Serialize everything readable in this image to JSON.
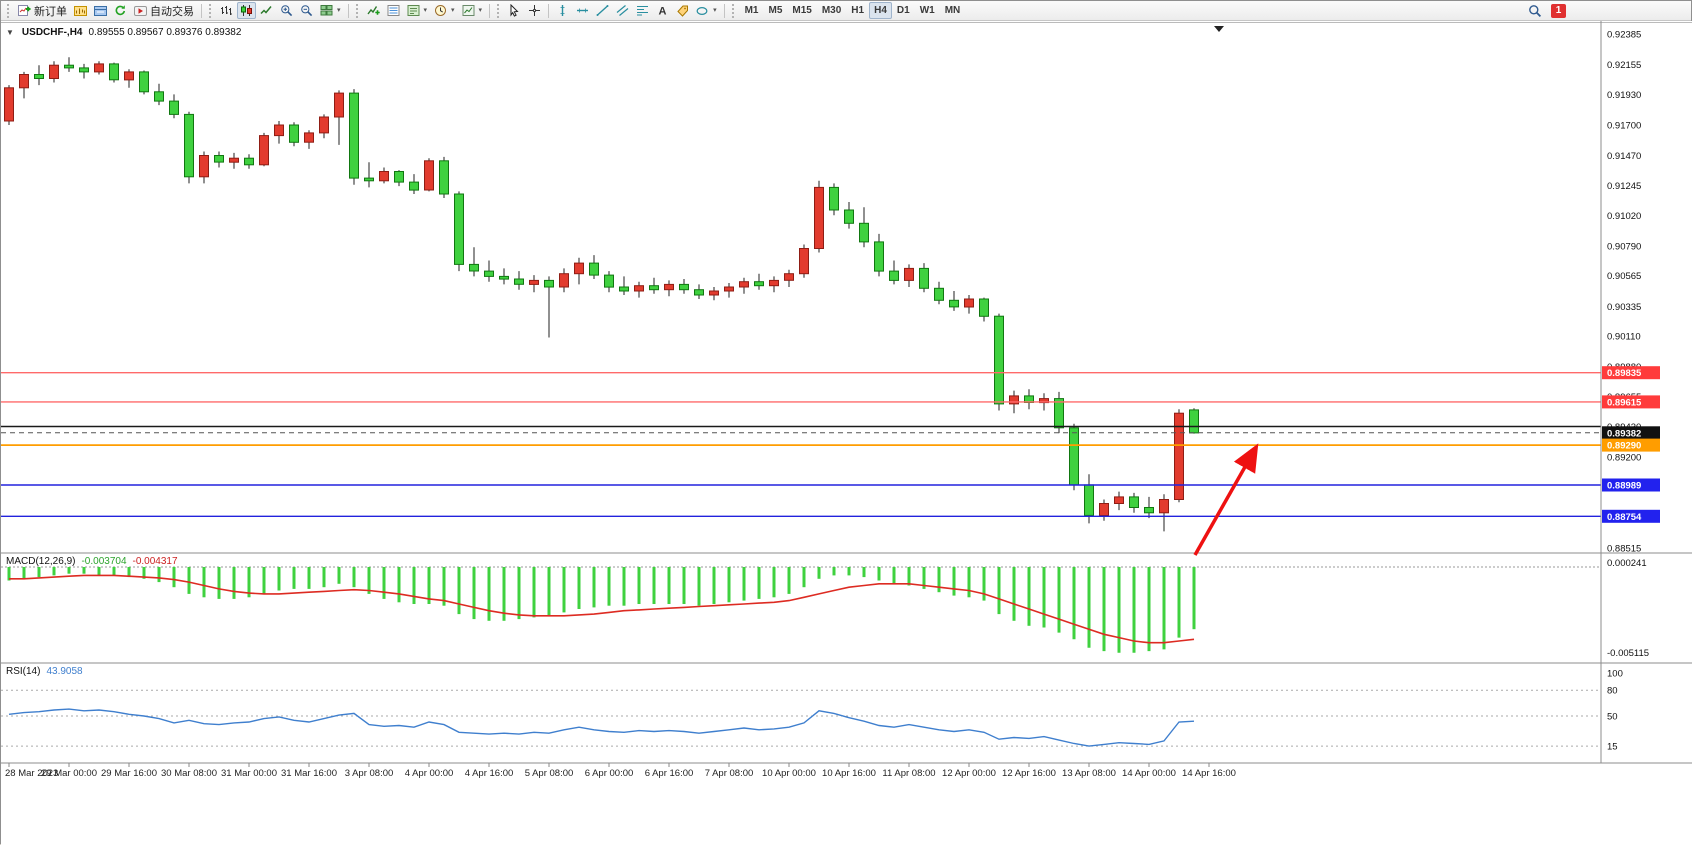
{
  "toolbar": {
    "new_order_label": "新订单",
    "autotrading_label": "自动交易",
    "timeframes": [
      "M1",
      "M5",
      "M15",
      "M30",
      "H1",
      "H4",
      "D1",
      "W1",
      "MN"
    ],
    "active_timeframe": "H4",
    "notification_count": "1"
  },
  "chart": {
    "title": "USDCHF-,H4",
    "ohlc": "0.89555 0.89567 0.89376 0.89382"
  },
  "chart_data": {
    "type": "candlestick",
    "symbol": "USDCHF-",
    "period": "H4",
    "colors": {
      "up": "#e23b2e",
      "up_border": "#8f1d14",
      "down": "#3fd13f",
      "down_border": "#117711",
      "wick": "#222222",
      "macd_hist": "#3fd13f",
      "macd_signal": "#dd2b22",
      "rsi": "#3f7fce"
    },
    "price_axis": {
      "max": 0.92385,
      "min": 0.88515,
      "ticks": [
        "0.92385",
        "0.92155",
        "0.91930",
        "0.91700",
        "0.91470",
        "0.91245",
        "0.91020",
        "0.90790",
        "0.90565",
        "0.90335",
        "0.90110",
        "0.89880",
        "0.89655",
        "0.89430",
        "0.89200",
        "0.88970",
        "0.88745",
        "0.88515"
      ]
    },
    "levels": [
      {
        "price": 0.89835,
        "color": "#ff6a6a",
        "width": 1.4,
        "badge": "0.89835",
        "badge_bg": "#ff3b3b"
      },
      {
        "price": 0.89615,
        "color": "#ff6a6a",
        "width": 1.4,
        "badge": "0.89615",
        "badge_bg": "#ff3b3b"
      },
      {
        "price": 0.8943,
        "color": "#1a1a1a",
        "width": 1.6,
        "badge": null
      },
      {
        "price": 0.89382,
        "color": "#555555",
        "width": 1,
        "dashed": true,
        "badge": "0.89382",
        "badge_bg": "#111111"
      },
      {
        "price": 0.8929,
        "color": "#ff9d00",
        "width": 1.8,
        "badge": "0.89290",
        "badge_bg": "#ff9d00"
      },
      {
        "price": 0.88989,
        "color": "#2222dd",
        "width": 1.4,
        "badge": "0.88989",
        "badge_bg": "#2222ee"
      },
      {
        "price": 0.88754,
        "color": "#2222dd",
        "width": 1.4,
        "badge": "0.88754",
        "badge_bg": "#2222ee"
      }
    ],
    "candles": [
      [
        0.9173,
        0.92,
        0.917,
        0.9198
      ],
      [
        0.9198,
        0.921,
        0.919,
        0.9208
      ],
      [
        0.9208,
        0.9215,
        0.92,
        0.9205
      ],
      [
        0.9205,
        0.9218,
        0.9202,
        0.9215
      ],
      [
        0.9215,
        0.9221,
        0.921,
        0.9213
      ],
      [
        0.9213,
        0.9216,
        0.9205,
        0.921
      ],
      [
        0.921,
        0.9218,
        0.9208,
        0.9216
      ],
      [
        0.9216,
        0.9217,
        0.9202,
        0.9204
      ],
      [
        0.9204,
        0.9212,
        0.9198,
        0.921
      ],
      [
        0.921,
        0.9211,
        0.9193,
        0.9195
      ],
      [
        0.9195,
        0.9201,
        0.9185,
        0.9188
      ],
      [
        0.9188,
        0.9193,
        0.9175,
        0.9178
      ],
      [
        0.9178,
        0.918,
        0.9126,
        0.9131
      ],
      [
        0.9131,
        0.915,
        0.9126,
        0.9147
      ],
      [
        0.9147,
        0.915,
        0.9138,
        0.9142
      ],
      [
        0.9142,
        0.9149,
        0.9137,
        0.9145
      ],
      [
        0.9145,
        0.9148,
        0.9137,
        0.914
      ],
      [
        0.914,
        0.9164,
        0.9139,
        0.9162
      ],
      [
        0.9162,
        0.9173,
        0.9156,
        0.917
      ],
      [
        0.917,
        0.9172,
        0.9154,
        0.9157
      ],
      [
        0.9157,
        0.9166,
        0.9152,
        0.9164
      ],
      [
        0.9164,
        0.9178,
        0.916,
        0.9176
      ],
      [
        0.9176,
        0.9196,
        0.9155,
        0.9194
      ],
      [
        0.9194,
        0.9197,
        0.9125,
        0.913
      ],
      [
        0.913,
        0.9142,
        0.9123,
        0.9128
      ],
      [
        0.9128,
        0.9138,
        0.9126,
        0.9135
      ],
      [
        0.9135,
        0.9136,
        0.9124,
        0.9127
      ],
      [
        0.9127,
        0.9133,
        0.9118,
        0.9121
      ],
      [
        0.9121,
        0.9145,
        0.912,
        0.9143
      ],
      [
        0.9143,
        0.9146,
        0.9115,
        0.9118
      ],
      [
        0.9118,
        0.912,
        0.906,
        0.9065
      ],
      [
        0.9065,
        0.9078,
        0.9056,
        0.906
      ],
      [
        0.906,
        0.9068,
        0.9052,
        0.9056
      ],
      [
        0.9056,
        0.9062,
        0.905,
        0.9054
      ],
      [
        0.9054,
        0.906,
        0.9046,
        0.905
      ],
      [
        0.905,
        0.9057,
        0.9044,
        0.9053
      ],
      [
        0.9053,
        0.9056,
        0.901,
        0.9048
      ],
      [
        0.9048,
        0.9062,
        0.9044,
        0.9058
      ],
      [
        0.9058,
        0.907,
        0.905,
        0.9066
      ],
      [
        0.9066,
        0.9072,
        0.9054,
        0.9057
      ],
      [
        0.9057,
        0.906,
        0.9044,
        0.9048
      ],
      [
        0.9048,
        0.9056,
        0.9042,
        0.9045
      ],
      [
        0.9045,
        0.9052,
        0.904,
        0.9049
      ],
      [
        0.9049,
        0.9055,
        0.9043,
        0.9046
      ],
      [
        0.9046,
        0.9053,
        0.9041,
        0.905
      ],
      [
        0.905,
        0.9054,
        0.9043,
        0.9046
      ],
      [
        0.9046,
        0.905,
        0.9039,
        0.9042
      ],
      [
        0.9042,
        0.9048,
        0.9038,
        0.9045
      ],
      [
        0.9045,
        0.9051,
        0.904,
        0.9048
      ],
      [
        0.9048,
        0.9055,
        0.9043,
        0.9052
      ],
      [
        0.9052,
        0.9058,
        0.9046,
        0.9049
      ],
      [
        0.9049,
        0.9056,
        0.9044,
        0.9053
      ],
      [
        0.9053,
        0.9061,
        0.9048,
        0.9058
      ],
      [
        0.9058,
        0.908,
        0.9055,
        0.9077
      ],
      [
        0.9077,
        0.9128,
        0.9074,
        0.9123
      ],
      [
        0.9123,
        0.9126,
        0.9102,
        0.9106
      ],
      [
        0.9106,
        0.9112,
        0.9092,
        0.9096
      ],
      [
        0.9096,
        0.9108,
        0.9078,
        0.9082
      ],
      [
        0.9082,
        0.9088,
        0.9056,
        0.906
      ],
      [
        0.906,
        0.9068,
        0.905,
        0.9053
      ],
      [
        0.9053,
        0.9065,
        0.9048,
        0.9062
      ],
      [
        0.9062,
        0.9066,
        0.9044,
        0.9047
      ],
      [
        0.9047,
        0.9052,
        0.9035,
        0.9038
      ],
      [
        0.9038,
        0.9045,
        0.903,
        0.9033
      ],
      [
        0.9033,
        0.9042,
        0.9028,
        0.9039
      ],
      [
        0.9039,
        0.904,
        0.9022,
        0.9026
      ],
      [
        0.9026,
        0.9028,
        0.8955,
        0.896
      ],
      [
        0.896,
        0.897,
        0.8953,
        0.8966
      ],
      [
        0.8966,
        0.8971,
        0.8956,
        0.8961
      ],
      [
        0.8961,
        0.8968,
        0.8955,
        0.8964
      ],
      [
        0.8964,
        0.8969,
        0.8938,
        0.8942
      ],
      [
        0.8942,
        0.8945,
        0.8895,
        0.8899
      ],
      [
        0.8899,
        0.8907,
        0.887,
        0.8876
      ],
      [
        0.8876,
        0.8888,
        0.8872,
        0.8885
      ],
      [
        0.8885,
        0.8894,
        0.888,
        0.889
      ],
      [
        0.889,
        0.8893,
        0.8878,
        0.8882
      ],
      [
        0.8882,
        0.889,
        0.8874,
        0.8878
      ],
      [
        0.8878,
        0.8892,
        0.8864,
        0.8888
      ],
      [
        0.8888,
        0.8956,
        0.8886,
        0.8953
      ],
      [
        0.89555,
        0.89567,
        0.89376,
        0.89382
      ]
    ],
    "time_labels": [
      "28 Mar 2023",
      "29 Mar 00:00",
      "29 Mar 16:00",
      "30 Mar 08:00",
      "31 Mar 00:00",
      "31 Mar 16:00",
      "3 Apr 08:00",
      "4 Apr 00:00",
      "4 Apr 16:00",
      "5 Apr 08:00",
      "6 Apr 00:00",
      "6 Apr 16:00",
      "7 Apr 08:00",
      "10 Apr 00:00",
      "10 Apr 16:00",
      "11 Apr 08:00",
      "12 Apr 00:00",
      "12 Apr 16:00",
      "13 Apr 08:00",
      "14 Apr 00:00",
      "14 Apr 16:00"
    ],
    "macd": {
      "label": "MACD(12,26,9)",
      "value_main": "-0.003704",
      "value_signal": "-0.004317",
      "scale_top": "0.000241",
      "scale_bottom": "-0.005115",
      "histogram": [
        -0.0008,
        -0.0007,
        -0.0006,
        -0.0005,
        -0.0004,
        -0.0004,
        -0.0005,
        -0.0005,
        -0.0006,
        -0.0007,
        -0.0009,
        -0.0012,
        -0.0016,
        -0.0018,
        -0.0019,
        -0.0019,
        -0.0018,
        -0.0016,
        -0.0014,
        -0.0013,
        -0.0013,
        -0.0012,
        -0.001,
        -0.0012,
        -0.0016,
        -0.0019,
        -0.0021,
        -0.0022,
        -0.0022,
        -0.0023,
        -0.0028,
        -0.0031,
        -0.0032,
        -0.0032,
        -0.0031,
        -0.003,
        -0.0029,
        -0.0027,
        -0.0025,
        -0.0024,
        -0.0023,
        -0.0023,
        -0.0022,
        -0.0022,
        -0.0022,
        -0.0022,
        -0.0023,
        -0.0022,
        -0.0021,
        -0.002,
        -0.0019,
        -0.0018,
        -0.0016,
        -0.0012,
        -0.0007,
        -0.0005,
        -0.0005,
        -0.0006,
        -0.0008,
        -0.001,
        -0.0011,
        -0.0013,
        -0.0015,
        -0.0017,
        -0.0018,
        -0.002,
        -0.0028,
        -0.0032,
        -0.0035,
        -0.0036,
        -0.0039,
        -0.0043,
        -0.0048,
        -0.005,
        -0.0051,
        -0.0051,
        -0.005,
        -0.0049,
        -0.0042,
        -0.0037
      ],
      "signal": [
        -0.0007,
        -0.0007,
        -0.00065,
        -0.0006,
        -0.00055,
        -0.0005,
        -0.0005,
        -0.0005,
        -0.00055,
        -0.0006,
        -0.00065,
        -0.00075,
        -0.0009,
        -0.0011,
        -0.0013,
        -0.00145,
        -0.00155,
        -0.0016,
        -0.0016,
        -0.00155,
        -0.0015,
        -0.00145,
        -0.0014,
        -0.00135,
        -0.0014,
        -0.0015,
        -0.0016,
        -0.00175,
        -0.0019,
        -0.002,
        -0.0022,
        -0.0024,
        -0.0026,
        -0.00275,
        -0.00285,
        -0.0029,
        -0.0029,
        -0.0029,
        -0.00285,
        -0.0028,
        -0.0027,
        -0.0026,
        -0.00255,
        -0.0025,
        -0.00245,
        -0.0024,
        -0.00235,
        -0.0023,
        -0.00225,
        -0.0022,
        -0.00215,
        -0.0021,
        -0.002,
        -0.0018,
        -0.0016,
        -0.0014,
        -0.0012,
        -0.0011,
        -0.001,
        -0.001,
        -0.001,
        -0.0011,
        -0.0012,
        -0.0013,
        -0.0014,
        -0.0016,
        -0.0019,
        -0.0022,
        -0.0025,
        -0.0028,
        -0.0031,
        -0.0034,
        -0.0037,
        -0.004,
        -0.0042,
        -0.0044,
        -0.0045,
        -0.0045,
        -0.0044,
        -0.0043
      ]
    },
    "rsi": {
      "label": "RSI(14)",
      "value": "43.9058",
      "levels": [
        100,
        80,
        50,
        15
      ],
      "values": [
        52,
        54,
        55,
        57,
        58,
        56,
        57,
        55,
        52,
        50,
        47,
        42,
        45,
        41,
        40,
        42,
        43,
        47,
        49,
        45,
        43,
        47,
        51,
        53,
        40,
        38,
        39,
        37,
        43,
        40,
        31,
        30,
        29,
        30,
        29,
        31,
        30,
        34,
        37,
        34,
        32,
        31,
        33,
        32,
        33,
        32,
        30,
        32,
        34,
        36,
        34,
        35,
        37,
        42,
        56,
        53,
        48,
        44,
        39,
        37,
        40,
        37,
        34,
        32,
        34,
        31,
        23,
        25,
        24,
        26,
        22,
        18,
        15,
        17,
        19,
        18,
        17,
        21,
        43,
        44
      ]
    },
    "arrow": {
      "from": [
        1194,
        534
      ],
      "to": [
        1253,
        430
      ],
      "color": "#ee1111"
    }
  }
}
